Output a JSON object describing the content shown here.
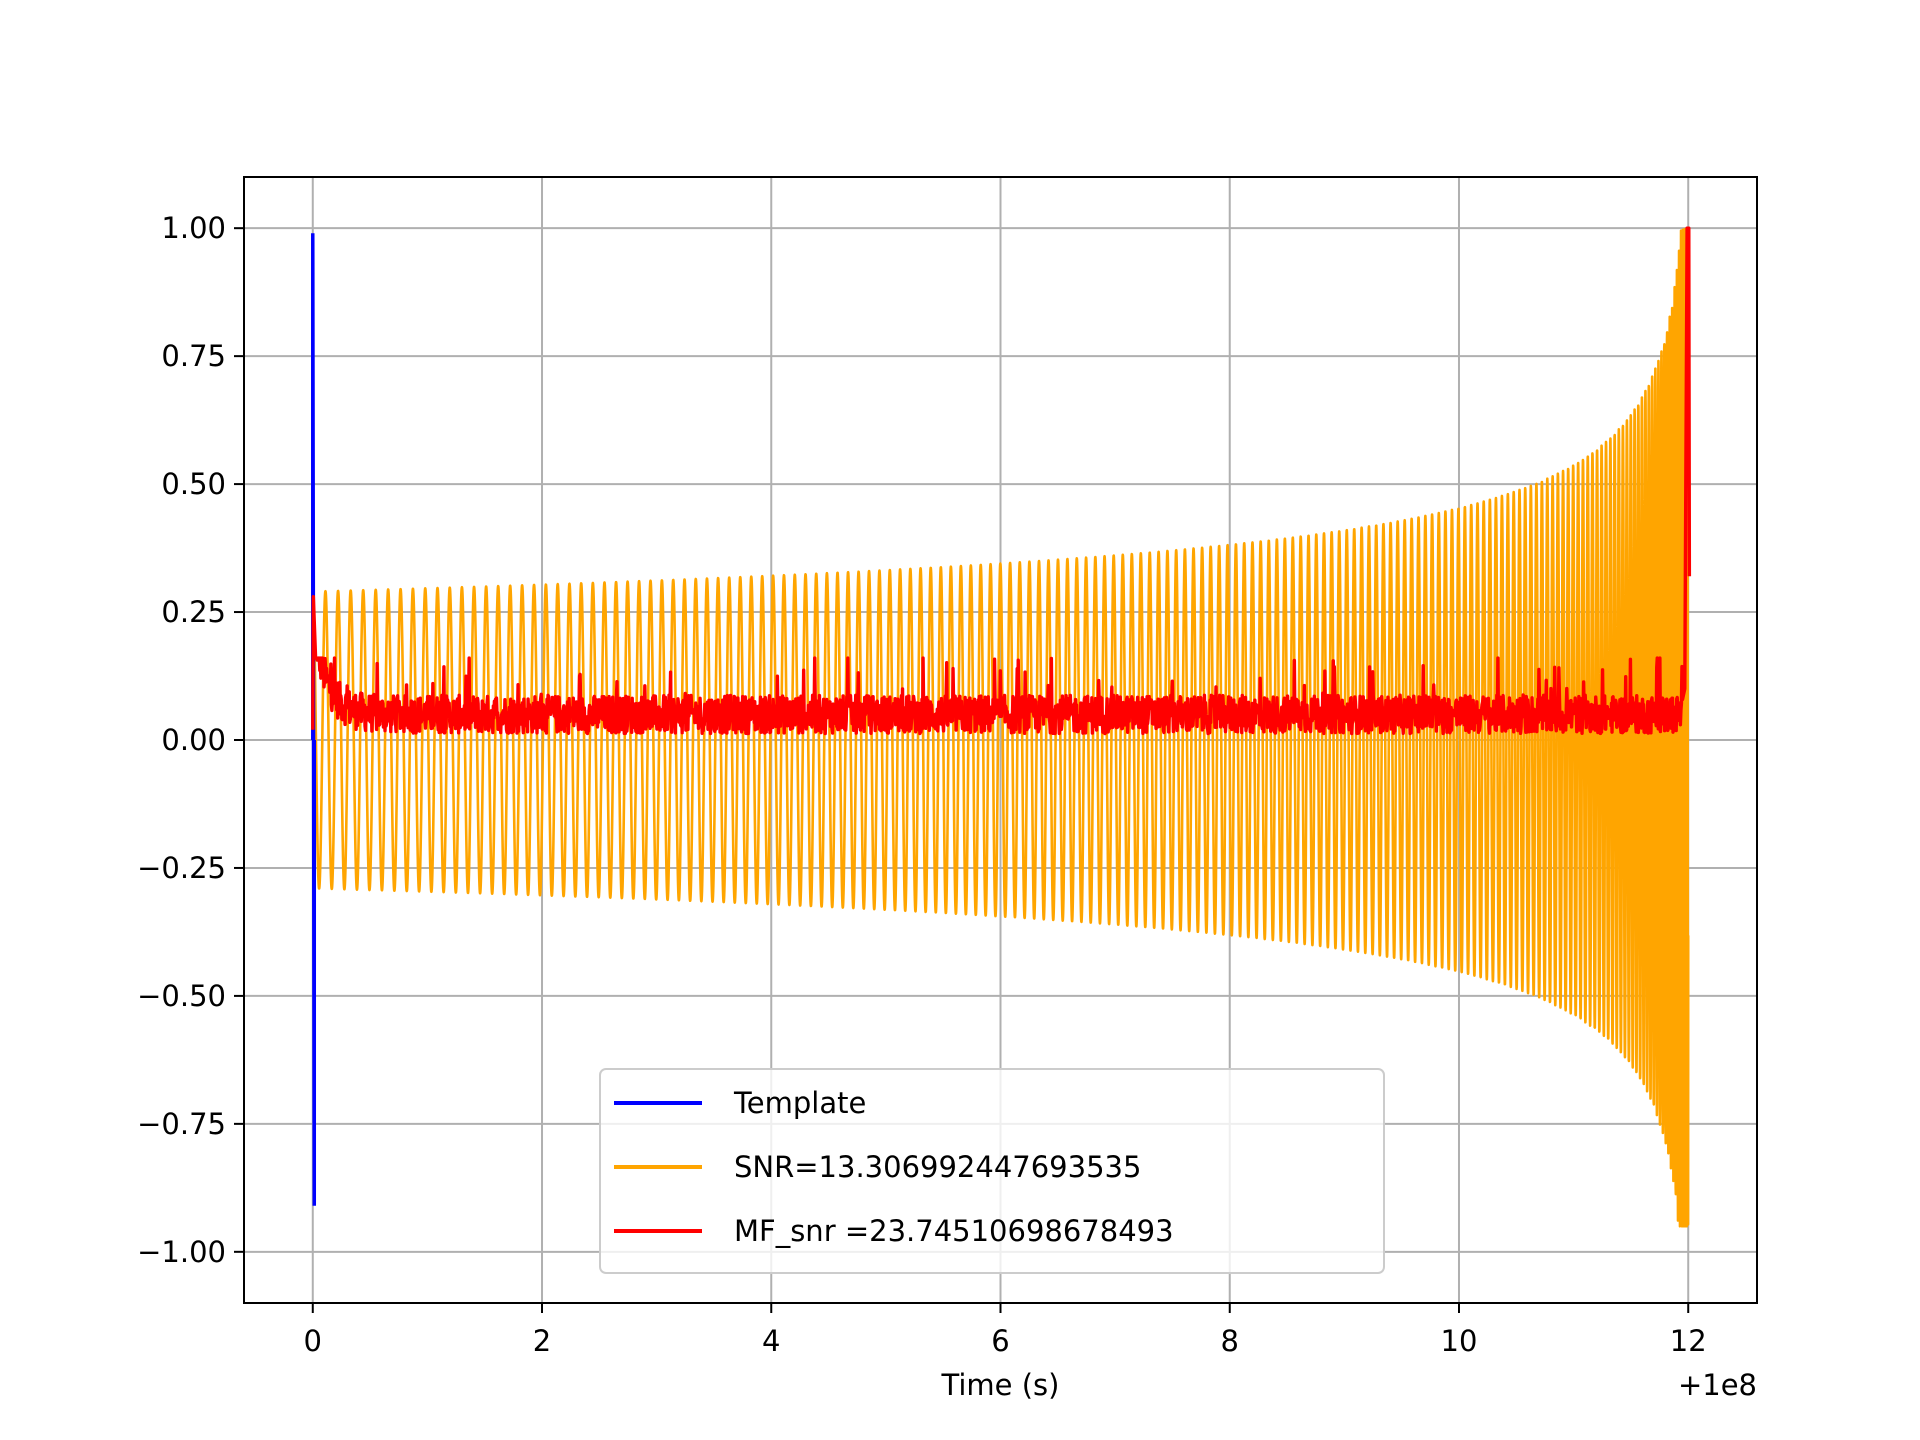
{
  "chart_data": {
    "type": "line",
    "title": "",
    "xlabel": "Time (s)",
    "ylabel": "",
    "x_offset_label": "+1e8",
    "xlim": [
      -0.6,
      12.6
    ],
    "ylim": [
      -1.1,
      1.1
    ],
    "grid": true,
    "xticks": [
      0,
      2,
      4,
      6,
      8,
      10,
      12
    ],
    "xtick_labels": [
      "0",
      "2",
      "4",
      "6",
      "8",
      "10",
      "12"
    ],
    "yticks": [
      1.0,
      0.75,
      0.5,
      0.25,
      0.0,
      -0.25,
      -0.5,
      -0.75,
      -1.0
    ],
    "ytick_labels": [
      "1.00",
      "0.75",
      "0.50",
      "0.25",
      "0.00",
      "−0.25",
      "−0.50",
      "−0.75",
      "−1.00"
    ],
    "legend_position": "lower-center",
    "series": [
      {
        "name": "Template",
        "label": "Template",
        "color": "#0000ff",
        "kind": "spike",
        "t": 0.0,
        "max": 0.99,
        "min": -0.91
      },
      {
        "name": "SNR",
        "label": "SNR=13.306992447693535",
        "color": "#ffa500",
        "kind": "chirp",
        "t_start": 0.0,
        "t_end": 12.0,
        "amp_start": 0.29,
        "amp_end": 1.0,
        "min_end": -0.95,
        "cycles": 175
      },
      {
        "name": "MF_snr",
        "label": "MF_snr =23.74510698678493",
        "color": "#ff0000",
        "kind": "noise",
        "t_start": 0.0,
        "t_end": 11.95,
        "baseline": 0.05,
        "initial_peak": 0.28,
        "noise_low": 0.0,
        "noise_high": 0.16,
        "final_peak": 1.0,
        "final_value": 0.32
      }
    ]
  }
}
